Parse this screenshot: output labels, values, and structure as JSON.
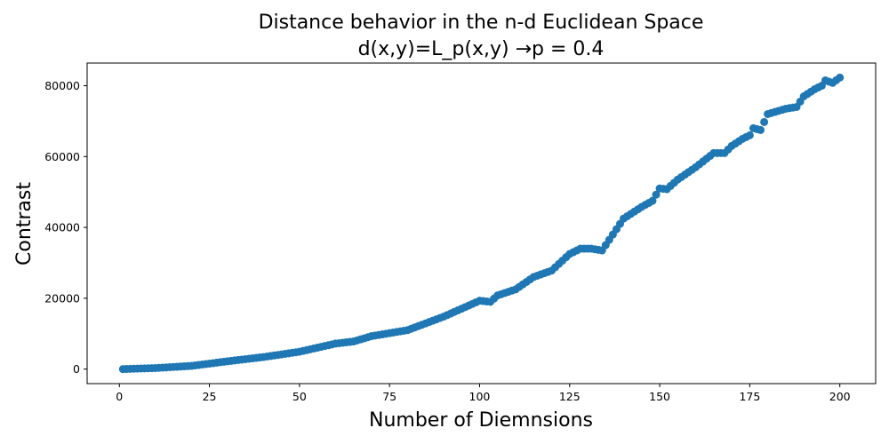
{
  "chart_data": {
    "type": "scatter",
    "title": [
      "Distance behavior in the n-d Euclidean Space",
      "d(x,y)=L_p(x,y) →p =  0.4"
    ],
    "xlabel": "Number of Diemnsions",
    "ylabel": "Contrast",
    "color": "#1f77b4",
    "xlim": [
      -8.95,
      209.95
    ],
    "ylim": [
      -4100,
      86400
    ],
    "xticks": [
      0,
      25,
      50,
      75,
      100,
      125,
      150,
      175,
      200
    ],
    "yticks": [
      0,
      20000,
      40000,
      60000,
      80000
    ],
    "x": [
      1,
      2,
      3,
      4,
      5,
      6,
      7,
      8,
      9,
      10,
      11,
      12,
      13,
      14,
      15,
      16,
      17,
      18,
      19,
      20,
      21,
      22,
      23,
      24,
      25,
      26,
      27,
      28,
      29,
      30,
      31,
      32,
      33,
      34,
      35,
      36,
      37,
      38,
      39,
      40,
      41,
      42,
      43,
      44,
      45,
      46,
      47,
      48,
      49,
      50,
      51,
      52,
      53,
      54,
      55,
      56,
      57,
      58,
      59,
      60,
      61,
      62,
      63,
      64,
      65,
      66,
      67,
      68,
      69,
      70,
      71,
      72,
      73,
      74,
      75,
      76,
      77,
      78,
      79,
      80,
      81,
      82,
      83,
      84,
      85,
      86,
      87,
      88,
      89,
      90,
      91,
      92,
      93,
      94,
      95,
      96,
      97,
      98,
      99,
      100,
      101,
      102,
      103,
      104,
      105,
      106,
      107,
      108,
      109,
      110,
      111,
      112,
      113,
      114,
      115,
      116,
      117,
      118,
      119,
      120,
      121,
      122,
      123,
      124,
      125,
      126,
      127,
      128,
      129,
      130,
      131,
      132,
      133,
      134,
      135,
      136,
      137,
      138,
      139,
      140,
      141,
      142,
      143,
      144,
      145,
      146,
      147,
      148,
      149,
      150,
      151,
      152,
      153,
      154,
      155,
      156,
      157,
      158,
      159,
      160,
      161,
      162,
      163,
      164,
      165,
      166,
      167,
      168,
      169,
      170,
      171,
      172,
      173,
      174,
      175,
      176,
      177,
      178,
      179,
      180,
      181,
      182,
      183,
      184,
      185,
      186,
      187,
      188,
      189,
      190,
      191,
      192,
      193,
      194,
      195,
      196,
      197,
      198,
      199,
      200
    ],
    "values": [
      0,
      30,
      70,
      100,
      130,
      170,
      200,
      230,
      270,
      300,
      360,
      420,
      480,
      540,
      600,
      660,
      720,
      780,
      840,
      900,
      1030,
      1160,
      1290,
      1420,
      1550,
      1680,
      1810,
      1940,
      2070,
      2200,
      2320,
      2440,
      2560,
      2680,
      2800,
      2920,
      3040,
      3160,
      3280,
      3400,
      3550,
      3700,
      3850,
      4000,
      4150,
      4300,
      4450,
      4600,
      4750,
      4900,
      5130,
      5360,
      5590,
      5820,
      6050,
      6280,
      6510,
      6740,
      6970,
      7200,
      7320,
      7440,
      7560,
      7680,
      7800,
      8100,
      8400,
      8700,
      9000,
      9300,
      9470,
      9640,
      9810,
      9980,
      10150,
      10320,
      10490,
      10660,
      10830,
      11000,
      11380,
      11760,
      12140,
      12520,
      12900,
      13280,
      13660,
      14040,
      14420,
      14800,
      15250,
      15700,
      16150,
      16600,
      17050,
      17500,
      17950,
      18400,
      18850,
      19300,
      19200,
      19100,
      19000,
      19900,
      20800,
      21140,
      21480,
      21820,
      22160,
      22500,
      23200,
      23900,
      24600,
      25300,
      26000,
      26360,
      26720,
      27080,
      27440,
      27800,
      28740,
      29680,
      30620,
      31560,
      32500,
      33000,
      33500,
      34000,
      34000,
      34000,
      34000,
      33830,
      33670,
      33500,
      35000,
      36500,
      38000,
      39500,
      41000,
      42500,
      43160,
      43820,
      44480,
      45140,
      45800,
      46370,
      46930,
      47500,
      49250,
      51000,
      50900,
      50800,
      51700,
      52600,
      53500,
      54200,
      54900,
      55600,
      56300,
      57000,
      57800,
      58600,
      59400,
      60200,
      61000,
      61000,
      61000,
      61000,
      62000,
      63000,
      63670,
      64330,
      65000,
      65500,
      66000,
      68000,
      67750,
      67500,
      69750,
      72000,
      72300,
      72600,
      72900,
      73200,
      73500,
      73670,
      73830,
      74000,
      75500,
      77000,
      77670,
      78330,
      79000,
      79500,
      80000,
      81500,
      81150,
      80800,
      81550,
      82300
    ]
  }
}
